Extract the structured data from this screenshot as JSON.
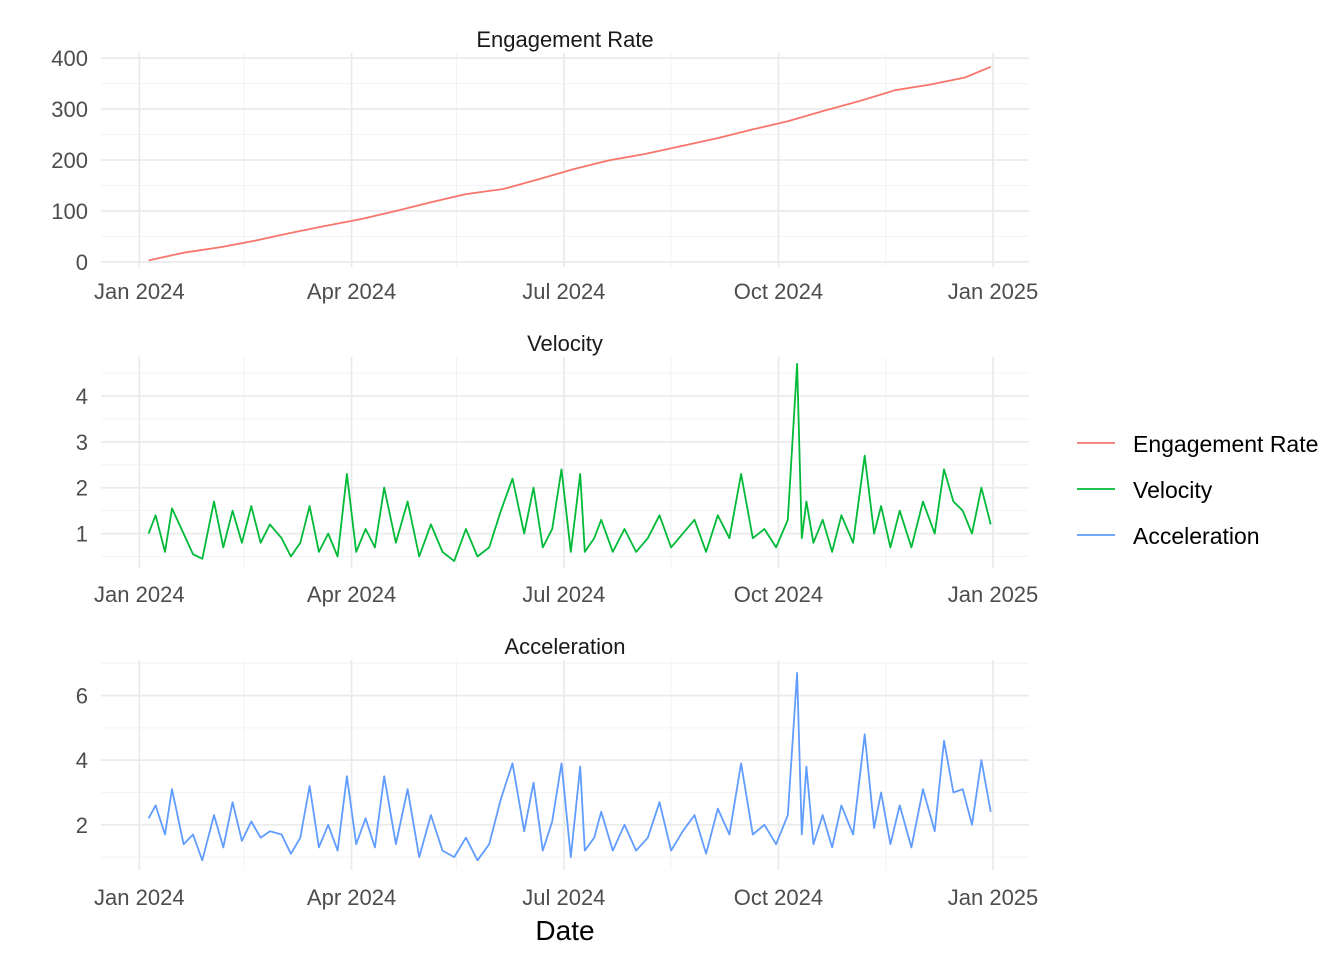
{
  "chart_data": {
    "type": "line",
    "xlabel": "Date",
    "x_range": [
      "2024-01-01",
      "2024-12-31"
    ],
    "x_ticks": [
      "Jan 2024",
      "Apr 2024",
      "Jul 2024",
      "Oct 2024",
      "Jan 2025"
    ],
    "x_tick_dates": [
      "2024-01-01",
      "2024-04-01",
      "2024-07-01",
      "2024-10-01",
      "2025-01-01"
    ],
    "grid": true,
    "legend_position": "right",
    "legend": [
      {
        "label": "Engagement Rate",
        "color": "#F8766D"
      },
      {
        "label": "Velocity",
        "color": "#00BA38"
      },
      {
        "label": "Acceleration",
        "color": "#619CFF"
      }
    ],
    "panels": [
      {
        "title": "Engagement Rate",
        "color": "#F8766D",
        "ylim": [
          -10,
          410
        ],
        "y_ticks": [
          0,
          100,
          200,
          300,
          400
        ],
        "x": [
          "2024-01-05",
          "2024-01-20",
          "2024-02-05",
          "2024-02-20",
          "2024-03-05",
          "2024-03-20",
          "2024-04-05",
          "2024-04-20",
          "2024-05-05",
          "2024-05-20",
          "2024-06-05",
          "2024-06-20",
          "2024-07-05",
          "2024-07-20",
          "2024-08-05",
          "2024-08-20",
          "2024-09-05",
          "2024-09-20",
          "2024-10-05",
          "2024-10-20",
          "2024-11-05",
          "2024-11-20",
          "2024-12-05",
          "2024-12-20",
          "2024-12-31"
        ],
        "values": [
          3,
          18,
          29,
          42,
          56,
          70,
          84,
          100,
          117,
          133,
          143,
          162,
          182,
          199,
          212,
          227,
          243,
          260,
          276,
          296,
          316,
          337,
          348,
          362,
          383
        ]
      },
      {
        "title": "Velocity",
        "color": "#00BA38",
        "ylim": [
          0.25,
          4.85
        ],
        "y_ticks": [
          1,
          2,
          3,
          4
        ],
        "x": [
          "2024-01-05",
          "2024-01-08",
          "2024-01-12",
          "2024-01-15",
          "2024-01-20",
          "2024-01-24",
          "2024-01-28",
          "2024-02-02",
          "2024-02-06",
          "2024-02-10",
          "2024-02-14",
          "2024-02-18",
          "2024-02-22",
          "2024-02-26",
          "2024-03-02",
          "2024-03-06",
          "2024-03-10",
          "2024-03-14",
          "2024-03-18",
          "2024-03-22",
          "2024-03-26",
          "2024-03-30",
          "2024-04-03",
          "2024-04-07",
          "2024-04-11",
          "2024-04-15",
          "2024-04-20",
          "2024-04-25",
          "2024-04-30",
          "2024-05-05",
          "2024-05-10",
          "2024-05-15",
          "2024-05-20",
          "2024-05-25",
          "2024-05-30",
          "2024-06-04",
          "2024-06-09",
          "2024-06-14",
          "2024-06-18",
          "2024-06-22",
          "2024-06-26",
          "2024-06-30",
          "2024-07-04",
          "2024-07-08",
          "2024-07-10",
          "2024-07-14",
          "2024-07-17",
          "2024-07-22",
          "2024-07-27",
          "2024-08-01",
          "2024-08-06",
          "2024-08-11",
          "2024-08-16",
          "2024-08-21",
          "2024-08-26",
          "2024-08-31",
          "2024-09-05",
          "2024-09-10",
          "2024-09-15",
          "2024-09-20",
          "2024-09-25",
          "2024-09-30",
          "2024-10-05",
          "2024-10-09",
          "2024-10-11",
          "2024-10-13",
          "2024-10-16",
          "2024-10-20",
          "2024-10-24",
          "2024-10-28",
          "2024-11-02",
          "2024-11-07",
          "2024-11-11",
          "2024-11-14",
          "2024-11-18",
          "2024-11-22",
          "2024-11-27",
          "2024-12-02",
          "2024-12-07",
          "2024-12-11",
          "2024-12-15",
          "2024-12-19",
          "2024-12-23",
          "2024-12-27",
          "2024-12-31"
        ],
        "values": [
          1.0,
          1.4,
          0.6,
          1.55,
          1.0,
          0.55,
          0.45,
          1.7,
          0.7,
          1.5,
          0.8,
          1.6,
          0.8,
          1.2,
          0.9,
          0.5,
          0.8,
          1.6,
          0.6,
          1.0,
          0.5,
          2.3,
          0.6,
          1.1,
          0.7,
          2.0,
          0.8,
          1.7,
          0.5,
          1.2,
          0.6,
          0.4,
          1.1,
          0.5,
          0.7,
          1.5,
          2.2,
          1.0,
          2.0,
          0.7,
          1.1,
          2.4,
          0.6,
          2.3,
          0.6,
          0.9,
          1.3,
          0.6,
          1.1,
          0.6,
          0.9,
          1.4,
          0.7,
          1.0,
          1.3,
          0.6,
          1.4,
          0.9,
          2.3,
          0.9,
          1.1,
          0.7,
          1.3,
          4.7,
          0.9,
          1.7,
          0.8,
          1.3,
          0.6,
          1.4,
          0.8,
          2.7,
          1.0,
          1.6,
          0.7,
          1.5,
          0.7,
          1.7,
          1.0,
          2.4,
          1.7,
          1.5,
          1.0,
          2.0,
          1.2
        ]
      },
      {
        "title": "Acceleration",
        "color": "#619CFF",
        "ylim": [
          0.6,
          7.1
        ],
        "y_ticks": [
          2,
          4,
          6
        ],
        "x": [
          "2024-01-05",
          "2024-01-08",
          "2024-01-12",
          "2024-01-15",
          "2024-01-20",
          "2024-01-24",
          "2024-01-28",
          "2024-02-02",
          "2024-02-06",
          "2024-02-10",
          "2024-02-14",
          "2024-02-18",
          "2024-02-22",
          "2024-02-26",
          "2024-03-02",
          "2024-03-06",
          "2024-03-10",
          "2024-03-14",
          "2024-03-18",
          "2024-03-22",
          "2024-03-26",
          "2024-03-30",
          "2024-04-03",
          "2024-04-07",
          "2024-04-11",
          "2024-04-15",
          "2024-04-20",
          "2024-04-25",
          "2024-04-30",
          "2024-05-05",
          "2024-05-10",
          "2024-05-15",
          "2024-05-20",
          "2024-05-25",
          "2024-05-30",
          "2024-06-04",
          "2024-06-09",
          "2024-06-14",
          "2024-06-18",
          "2024-06-22",
          "2024-06-26",
          "2024-06-30",
          "2024-07-04",
          "2024-07-08",
          "2024-07-10",
          "2024-07-14",
          "2024-07-17",
          "2024-07-22",
          "2024-07-27",
          "2024-08-01",
          "2024-08-06",
          "2024-08-11",
          "2024-08-16",
          "2024-08-21",
          "2024-08-26",
          "2024-08-31",
          "2024-09-05",
          "2024-09-10",
          "2024-09-15",
          "2024-09-20",
          "2024-09-25",
          "2024-09-30",
          "2024-10-05",
          "2024-10-09",
          "2024-10-11",
          "2024-10-13",
          "2024-10-16",
          "2024-10-20",
          "2024-10-24",
          "2024-10-28",
          "2024-11-02",
          "2024-11-07",
          "2024-11-11",
          "2024-11-14",
          "2024-11-18",
          "2024-11-22",
          "2024-11-27",
          "2024-12-02",
          "2024-12-07",
          "2024-12-11",
          "2024-12-15",
          "2024-12-19",
          "2024-12-23",
          "2024-12-27",
          "2024-12-31"
        ],
        "values": [
          2.2,
          2.6,
          1.7,
          3.1,
          1.4,
          1.7,
          0.9,
          2.3,
          1.3,
          2.7,
          1.5,
          2.1,
          1.6,
          1.8,
          1.7,
          1.1,
          1.6,
          3.2,
          1.3,
          2.0,
          1.2,
          3.5,
          1.4,
          2.2,
          1.3,
          3.5,
          1.4,
          3.1,
          1.0,
          2.3,
          1.2,
          1.0,
          1.6,
          0.9,
          1.4,
          2.8,
          3.9,
          1.8,
          3.3,
          1.2,
          2.1,
          3.9,
          1.0,
          3.8,
          1.2,
          1.6,
          2.4,
          1.2,
          2.0,
          1.2,
          1.6,
          2.7,
          1.2,
          1.8,
          2.3,
          1.1,
          2.5,
          1.7,
          3.9,
          1.7,
          2.0,
          1.4,
          2.3,
          6.7,
          1.7,
          3.8,
          1.4,
          2.3,
          1.3,
          2.6,
          1.7,
          4.8,
          1.9,
          3.0,
          1.4,
          2.6,
          1.3,
          3.1,
          1.8,
          4.6,
          3.0,
          3.1,
          2.0,
          4.0,
          2.4
        ]
      }
    ]
  }
}
